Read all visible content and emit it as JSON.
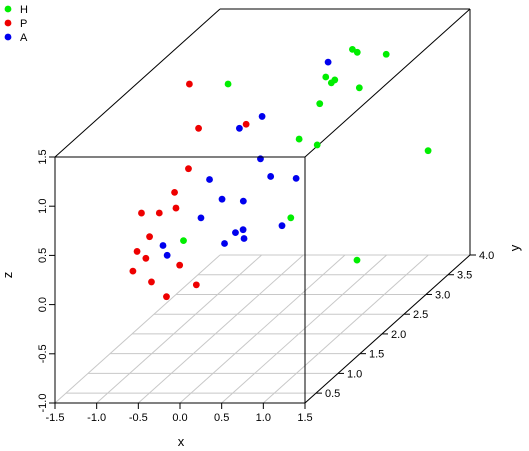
{
  "chart_data": {
    "type": "scatter",
    "projection": "3d",
    "xlabel": "x",
    "ylabel": "y",
    "zlabel": "z",
    "xlim": [
      -1.5,
      1.5
    ],
    "ylim": [
      0.25,
      4.0
    ],
    "zlim": [
      -1.0,
      1.5
    ],
    "x_ticks": [
      "-1.5",
      "-1.0",
      "-0.5",
      "0.0",
      "0.5",
      "1.0",
      "1.5"
    ],
    "y_ticks": [
      "0.5",
      "1.0",
      "1.5",
      "2.0",
      "2.5",
      "3.0",
      "3.5",
      "4.0"
    ],
    "z_ticks": [
      "-1.0",
      "-0.5",
      "0.0",
      "0.5",
      "1.0",
      "1.5"
    ],
    "grid": "floor",
    "legend": "top-left",
    "series": [
      {
        "name": "H",
        "color": "#00ee00",
        "points": [
          [
            -0.09,
            0.5,
            0.55
          ],
          [
            -0.4,
            2.1,
            1.5
          ],
          [
            0.7,
            2.1,
            1.3
          ],
          [
            0.35,
            2.9,
            1.25
          ],
          [
            0.3,
            3.6,
            1.25
          ],
          [
            0.6,
            3.8,
            1.12
          ],
          [
            0.4,
            2.2,
            0.9
          ],
          [
            0.3,
            3.2,
            1.1
          ],
          [
            0.2,
            3.9,
            1.1
          ],
          [
            0.1,
            3.5,
            0.95
          ],
          [
            0.3,
            2.2,
            0.1
          ],
          [
            0.3,
            2.8,
            0.6
          ],
          [
            0.7,
            3.0,
            1.1
          ],
          [
            1.05,
            3.9,
            0.1
          ],
          [
            1.2,
            2.0,
            -0.25
          ]
        ]
      },
      {
        "name": "P",
        "color": "#ee0000",
        "points": [
          [
            -0.6,
            1.6,
            1.7
          ],
          [
            -0.49,
            1.6,
            1.25
          ],
          [
            -0.4,
            1.2,
            1.0
          ],
          [
            -0.25,
            0.6,
            1.0
          ],
          [
            -0.5,
            2.7,
            0.85
          ],
          [
            -0.7,
            0.7,
            0.75
          ],
          [
            -0.75,
            1.2,
            0.55
          ],
          [
            -0.7,
            0.6,
            0.4
          ],
          [
            -0.55,
            1.2,
            0.6
          ],
          [
            -0.55,
            0.6,
            0.55
          ],
          [
            -0.7,
            0.8,
            0.25
          ],
          [
            -0.4,
            1.0,
            0.1
          ],
          [
            -0.75,
            0.6,
            0.2
          ],
          [
            -0.58,
            0.7,
            0.05
          ],
          [
            -0.4,
            0.7,
            -0.1
          ],
          [
            -0.2,
            1.0,
            -0.1
          ]
        ]
      },
      {
        "name": "A",
        "color": "#0000ee",
        "points": [
          [
            -0.15,
            3.9,
            1.0
          ],
          [
            0.0,
            1.6,
            1.25
          ],
          [
            -0.15,
            2.4,
            1.05
          ],
          [
            0.2,
            1.7,
            0.9
          ],
          [
            -0.2,
            1.3,
            0.85
          ],
          [
            0.1,
            1.5,
            0.55
          ],
          [
            -0.05,
            1.3,
            0.65
          ],
          [
            -0.25,
            1.2,
            0.5
          ],
          [
            0.15,
            1.4,
            0.3
          ],
          [
            -0.1,
            2.5,
            0.4
          ],
          [
            0.1,
            2.7,
            0.3
          ],
          [
            0.3,
            2.0,
            0.1
          ],
          [
            -0.1,
            1.7,
            0.15
          ],
          [
            -0.05,
            1.8,
            0.05
          ],
          [
            -0.02,
            1.3,
            0.2
          ],
          [
            -0.6,
            1.0,
            0.3
          ],
          [
            -0.55,
            1.0,
            0.2
          ]
        ]
      }
    ]
  }
}
